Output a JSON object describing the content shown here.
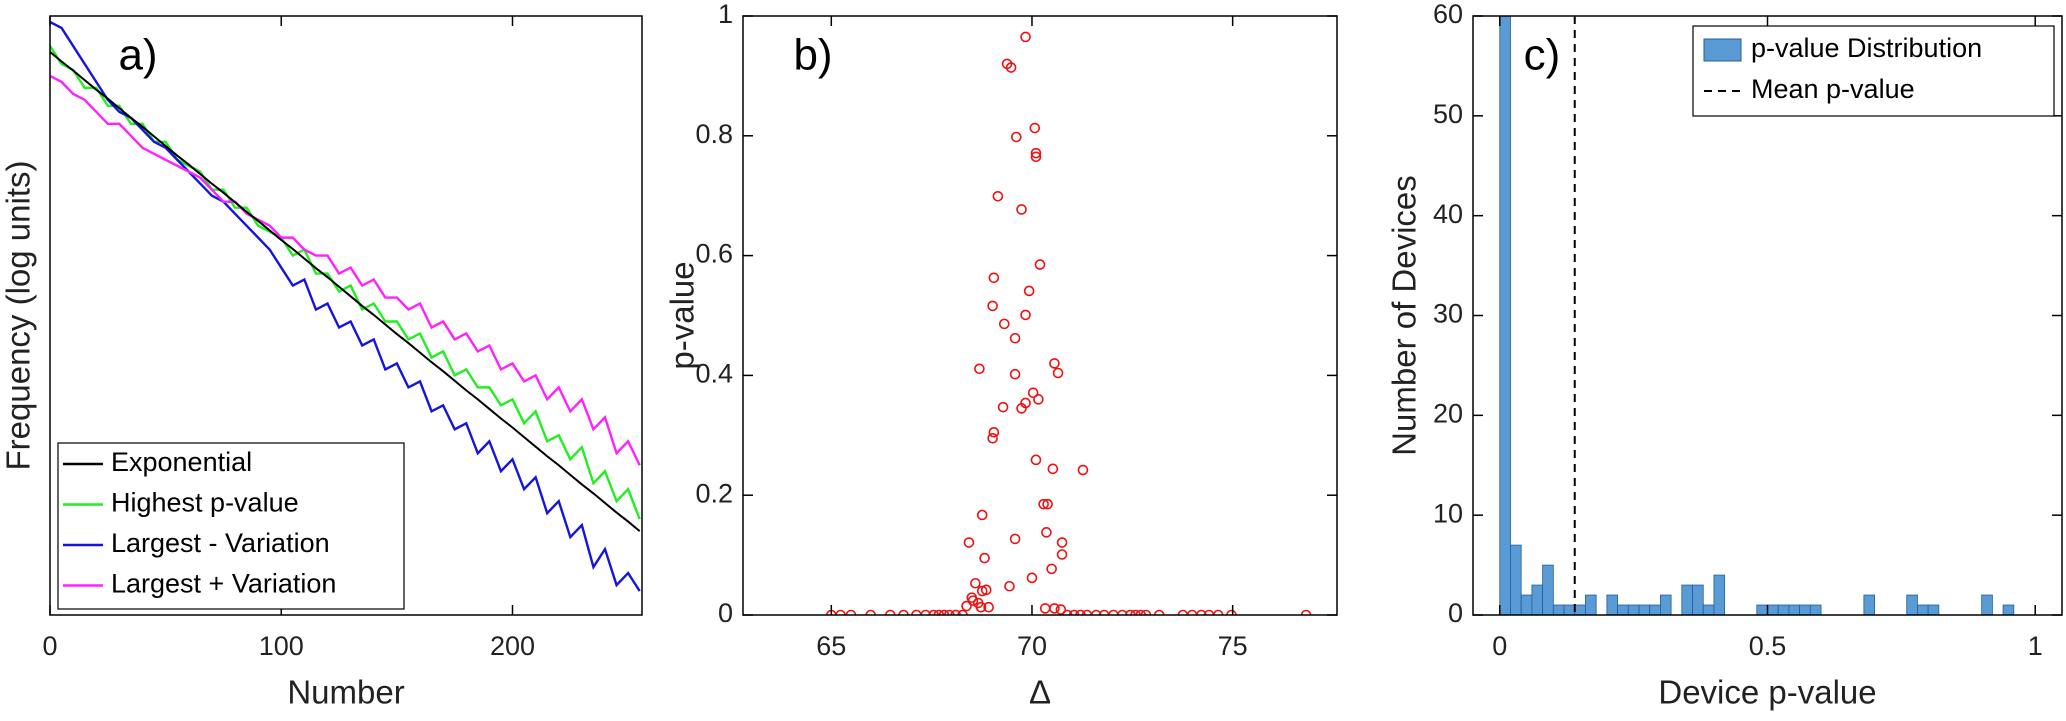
{
  "chart_data": [
    {
      "type": "line",
      "label": "a)",
      "x_label": "Number",
      "y_label": "Frequency (log units)",
      "x": [
        0,
        5,
        10,
        15,
        20,
        25,
        30,
        35,
        40,
        45,
        50,
        55,
        60,
        65,
        70,
        75,
        80,
        85,
        90,
        95,
        100,
        105,
        110,
        115,
        120,
        125,
        130,
        135,
        140,
        145,
        150,
        155,
        160,
        165,
        170,
        175,
        180,
        185,
        190,
        195,
        200,
        205,
        210,
        215,
        220,
        225,
        230,
        235,
        240,
        245,
        250,
        255
      ],
      "xlim": [
        0,
        256
      ],
      "xticks": [
        0,
        100,
        200
      ],
      "ylim": [
        0,
        10
      ],
      "legend": "lower left",
      "series": [
        {
          "name": "Exponential",
          "color": "#000000",
          "values": [
            9.4,
            9.24,
            9.09,
            8.93,
            8.77,
            8.62,
            8.46,
            8.3,
            8.15,
            7.99,
            7.83,
            7.67,
            7.52,
            7.36,
            7.2,
            7.05,
            6.89,
            6.73,
            6.58,
            6.42,
            6.26,
            6.11,
            5.95,
            5.79,
            5.64,
            5.48,
            5.32,
            5.16,
            5.01,
            4.85,
            4.69,
            4.54,
            4.38,
            4.22,
            4.07,
            3.91,
            3.75,
            3.6,
            3.44,
            3.28,
            3.13,
            2.97,
            2.81,
            2.65,
            2.5,
            2.34,
            2.18,
            2.03,
            1.87,
            1.71,
            1.56,
            1.4
          ]
        },
        {
          "name": "Highest  p-value",
          "color": "#22ee22",
          "values": [
            9.5,
            9.2,
            9.1,
            8.8,
            8.8,
            8.5,
            8.5,
            8.2,
            8.2,
            7.9,
            7.9,
            7.6,
            7.5,
            7.4,
            7.1,
            7.1,
            6.8,
            6.8,
            6.5,
            6.4,
            6.3,
            6.0,
            6.1,
            5.7,
            5.7,
            5.4,
            5.5,
            5.1,
            5.2,
            4.9,
            4.9,
            4.6,
            4.7,
            4.3,
            4.4,
            4.0,
            4.1,
            3.8,
            3.8,
            3.5,
            3.6,
            3.2,
            3.4,
            2.9,
            3.0,
            2.6,
            2.8,
            2.2,
            2.4,
            1.9,
            2.1,
            1.6
          ]
        },
        {
          "name": "Largest - Variation",
          "color": "#1515dd",
          "values": [
            9.9,
            9.8,
            9.5,
            9.2,
            8.9,
            8.6,
            8.4,
            8.3,
            8.1,
            7.9,
            7.8,
            7.6,
            7.4,
            7.2,
            7.0,
            6.9,
            6.7,
            6.5,
            6.3,
            6.1,
            5.8,
            5.5,
            5.6,
            5.1,
            5.2,
            4.8,
            4.9,
            4.5,
            4.6,
            4.1,
            4.2,
            3.8,
            3.9,
            3.4,
            3.5,
            3.1,
            3.2,
            2.7,
            2.9,
            2.4,
            2.6,
            2.1,
            2.3,
            1.7,
            1.9,
            1.3,
            1.5,
            0.8,
            1.1,
            0.5,
            0.7,
            0.4
          ]
        },
        {
          "name": "Largest + Variation",
          "color": "#ff22ff",
          "values": [
            9.0,
            8.9,
            8.7,
            8.6,
            8.4,
            8.2,
            8.2,
            8.0,
            7.8,
            7.7,
            7.6,
            7.5,
            7.4,
            7.3,
            7.1,
            6.9,
            6.9,
            6.7,
            6.6,
            6.5,
            6.3,
            6.3,
            6.1,
            6.0,
            6.0,
            5.7,
            5.8,
            5.5,
            5.6,
            5.3,
            5.3,
            5.1,
            5.2,
            4.8,
            4.9,
            4.6,
            4.7,
            4.4,
            4.5,
            4.1,
            4.2,
            3.9,
            4.0,
            3.6,
            3.8,
            3.4,
            3.6,
            3.1,
            3.3,
            2.7,
            2.9,
            2.5
          ]
        }
      ]
    },
    {
      "type": "scatter",
      "label": "b)",
      "x_label": "Δ",
      "y_label": "p-value",
      "color": "#ee1111",
      "x": [
        69.84,
        69.38,
        69.48,
        70.07,
        69.61,
        70.1,
        70.1,
        69.15,
        69.74,
        70.2,
        69.93,
        69.05,
        69.84,
        69.02,
        69.31,
        69.58,
        70.56,
        70.65,
        68.69,
        69.58,
        70.03,
        70.16,
        69.84,
        69.28,
        69.74,
        69.05,
        69.02,
        70.1,
        71.27,
        70.52,
        70.39,
        70.29,
        68.76,
        70.36,
        69.58,
        70.75,
        68.43,
        70.75,
        68.82,
        70.49,
        70.0,
        69.44,
        68.59,
        68.76,
        68.86,
        68.5,
        68.53,
        68.66,
        68.37,
        68.73,
        68.92,
        70.33,
        70.56,
        70.72,
        65.0,
        65.23,
        65.49,
        65.98,
        66.47,
        66.8,
        67.12,
        67.35,
        67.55,
        67.68,
        67.81,
        67.94,
        68.1,
        68.27,
        70.88,
        71.05,
        71.21,
        71.37,
        71.6,
        71.8,
        72.03,
        72.25,
        72.45,
        72.58,
        72.71,
        72.84,
        73.17,
        73.76,
        73.99,
        74.22,
        74.41,
        74.64,
        74.97,
        76.83
      ],
      "values": [
        0.965,
        0.92,
        0.914,
        0.813,
        0.798,
        0.771,
        0.765,
        0.699,
        0.677,
        0.585,
        0.541,
        0.563,
        0.501,
        0.516,
        0.486,
        0.462,
        0.42,
        0.404,
        0.411,
        0.402,
        0.371,
        0.36,
        0.354,
        0.347,
        0.345,
        0.305,
        0.295,
        0.259,
        0.242,
        0.244,
        0.185,
        0.185,
        0.167,
        0.138,
        0.127,
        0.121,
        0.121,
        0.101,
        0.095,
        0.077,
        0.062,
        0.048,
        0.053,
        0.04,
        0.042,
        0.029,
        0.024,
        0.02,
        0.015,
        0.013,
        0.013,
        0.011,
        0.011,
        0.009,
        0,
        0,
        0,
        0,
        0,
        0,
        0,
        0,
        0,
        0,
        0,
        0,
        0,
        0,
        0,
        0,
        0,
        0,
        0,
        0,
        0,
        0,
        0,
        0,
        0,
        0,
        0,
        0,
        0,
        0,
        0,
        0,
        0,
        0
      ],
      "xlim": [
        62.8,
        77.6
      ],
      "xticks": [
        65,
        70,
        75
      ],
      "ylim": [
        0,
        1
      ],
      "yticks": [
        0,
        0.2,
        0.4,
        0.6,
        0.8,
        1
      ]
    },
    {
      "type": "histogram",
      "label": "c)",
      "x_label": "Device  p-value",
      "y_label": "Number of Devices",
      "name": "p-value Distribution",
      "color": "#5b9bd5",
      "mean": 0.14,
      "mean_name": "Mean  p-value",
      "legend": "upper right",
      "bins": [
        0,
        0.02,
        0.04,
        0.06,
        0.08,
        0.1,
        0.12,
        0.14,
        0.16,
        0.18,
        0.2,
        0.22,
        0.24,
        0.26,
        0.28,
        0.3,
        0.32,
        0.34,
        0.36,
        0.38,
        0.4,
        0.42,
        0.44,
        0.46,
        0.48,
        0.5,
        0.52,
        0.54,
        0.56,
        0.58,
        0.6,
        0.62,
        0.64,
        0.66,
        0.68,
        0.7,
        0.72,
        0.74,
        0.76,
        0.78,
        0.8,
        0.82,
        0.84,
        0.86,
        0.88,
        0.9,
        0.92,
        0.94,
        0.96,
        0.98,
        1
      ],
      "counts": [
        60,
        7,
        2,
        3,
        5,
        1,
        1,
        1,
        2,
        0,
        2,
        1,
        1,
        1,
        1,
        2,
        0,
        3,
        3,
        1,
        4,
        0,
        0,
        0,
        1,
        1,
        1,
        1,
        1,
        1,
        0,
        0,
        0,
        0,
        2,
        0,
        0,
        0,
        2,
        1,
        1,
        0,
        0,
        0,
        0,
        2,
        0,
        1,
        0,
        0
      ],
      "xlim": [
        -0.05,
        1.05
      ],
      "xticks": [
        0,
        0.5,
        1
      ],
      "ylim": [
        0,
        60
      ],
      "yticks": [
        0,
        10,
        20,
        30,
        40,
        50,
        60
      ]
    }
  ]
}
